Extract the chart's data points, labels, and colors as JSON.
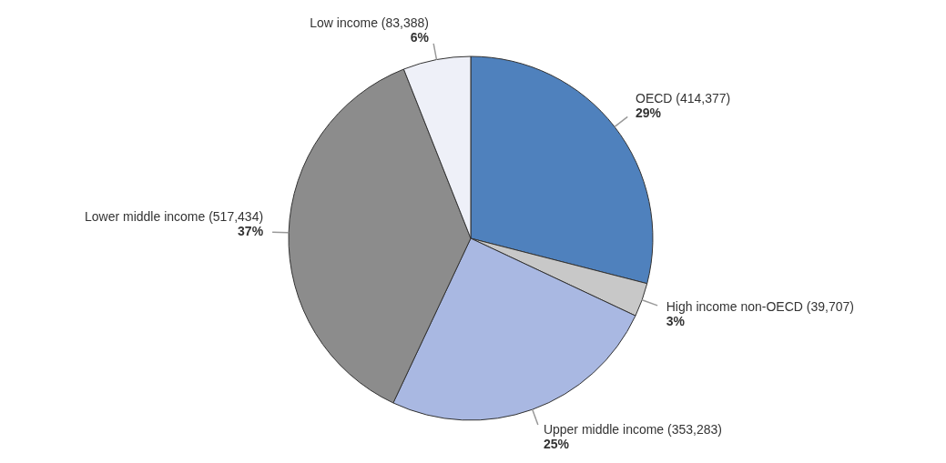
{
  "chart_data": {
    "type": "pie",
    "categories": [
      "OECD (414,377)",
      "High income non-OECD (39,707)",
      "Upper middle income (353,283)",
      "Lower middle income (517,434)",
      "Low income (83,388)"
    ],
    "values": [
      29,
      3,
      25,
      37,
      6
    ],
    "colors": [
      "#4f81bd",
      "#c8c8c8",
      "#a9b8e2",
      "#8c8c8c",
      "#eef0f8"
    ],
    "value_labels": [
      "29%",
      "3%",
      "25%",
      "37%",
      "6%"
    ]
  }
}
